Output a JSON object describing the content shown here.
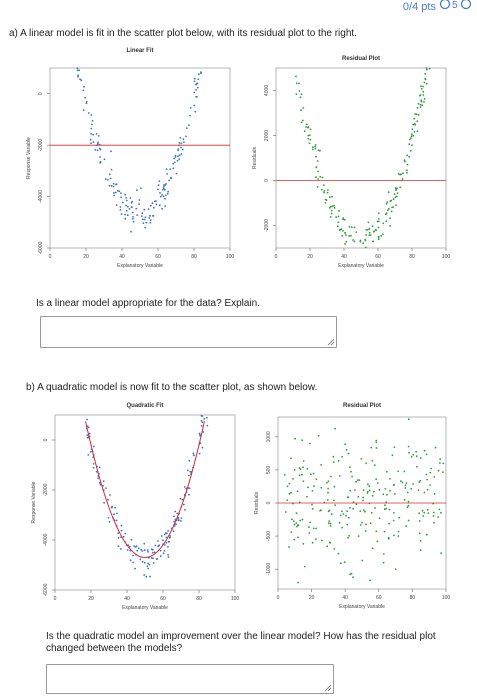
{
  "header": {
    "score_text": "0/4 pts"
  },
  "question_a": {
    "prompt": "a) A linear model is fit in the scatter plot below, with its residual plot to the right.",
    "followup": "Is a linear model appropriate for the data? Explain."
  },
  "question_b": {
    "prompt": "b) A quadratic model is now fit to the scatter plot, as shown below.",
    "followup": "Is the quadratic model an improvement over the linear model? How has the residual plot changed between the models?"
  },
  "colors": {
    "blue_points": "#3a72c8",
    "green_points": "#2e9b3c",
    "fit_line": "#d62b2b",
    "answer_border": "#9a9a9a"
  },
  "chart_data": [
    {
      "type": "scatter",
      "title": "Linear Fit",
      "xlabel": "Explanatory Variable",
      "ylabel": "Response Variable",
      "xlim": [
        0,
        100
      ],
      "ylim": [
        -6000,
        1000
      ],
      "x_ticks": [
        "0",
        "20",
        "40",
        "60",
        "80",
        "100"
      ],
      "y_ticks": [
        "0",
        "-2000",
        "-4000",
        "-6000"
      ],
      "fit_type": "linear",
      "fit_y": -2000,
      "point_color": "blue"
    },
    {
      "type": "scatter",
      "title": "Residual Plot",
      "xlabel": "Explanatory Variable",
      "ylabel": "Residuals",
      "xlim": [
        0,
        100
      ],
      "ylim": [
        -3000,
        5000
      ],
      "x_ticks": [
        "0",
        "20",
        "40",
        "60",
        "80",
        "100"
      ],
      "y_ticks": [
        "4000",
        "2000",
        "0",
        "-2000"
      ],
      "fit_type": "zero-line",
      "point_color": "green"
    },
    {
      "type": "scatter",
      "title": "Quadratic Fit",
      "xlabel": "Explanatory Variable",
      "ylabel": "Response Variable",
      "xlim": [
        0,
        100
      ],
      "ylim": [
        -6000,
        1000
      ],
      "x_ticks": [
        "0",
        "20",
        "40",
        "60",
        "80",
        "100"
      ],
      "y_ticks": [
        "0",
        "-2000",
        "-4000",
        "-6000"
      ],
      "fit_type": "quadratic",
      "point_color": "blue"
    },
    {
      "type": "scatter",
      "title": "Residual Plot",
      "xlabel": "Explanatory Variable",
      "ylabel": "Residuals",
      "xlim": [
        0,
        100
      ],
      "ylim": [
        -1300,
        1300
      ],
      "x_ticks": [
        "0",
        "20",
        "40",
        "60",
        "80",
        "100"
      ],
      "y_ticks": [
        "1000",
        "500",
        "0",
        "-500",
        "-1000"
      ],
      "fit_type": "zero-line",
      "point_color": "green"
    }
  ]
}
